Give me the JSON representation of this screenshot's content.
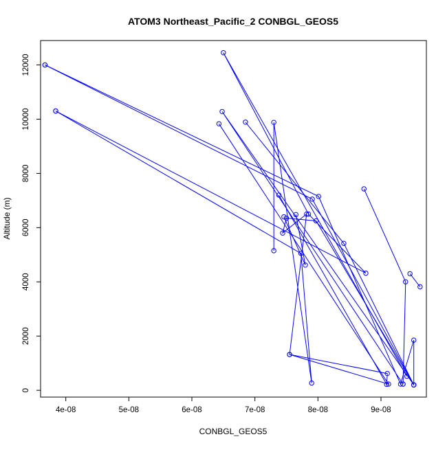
{
  "chart_data": {
    "type": "line",
    "title": "ATOM3 Northeast_Pacific_2 CONBGL_GEOS5",
    "xlabel": "CONBGL_GEOS5",
    "ylabel": "Altitude (m)",
    "xlim": [
      3.6e-08,
      9.72e-08
    ],
    "ylim": [
      -250,
      12900
    ],
    "x_ticks": [
      4e-08,
      5e-08,
      6e-08,
      7e-08,
      8e-08,
      9e-08
    ],
    "x_tick_labels": [
      "4e-08",
      "5e-08",
      "6e-08",
      "7e-08",
      "8e-08",
      "9e-08"
    ],
    "y_ticks": [
      0,
      2000,
      4000,
      6000,
      8000,
      10000,
      12000
    ],
    "y_tick_labels": [
      "0",
      "2000",
      "4000",
      "6000",
      "8000",
      "10000",
      "12000"
    ],
    "grid": false,
    "legend": "none",
    "series_color": "#0000ff",
    "markers": "open-circle",
    "series": [
      {
        "points": [
          {
            "x": 3.67e-08,
            "y": 12000
          },
          {
            "x": 8.01e-08,
            "y": 7150
          },
          {
            "x": 9.31e-08,
            "y": 230
          },
          {
            "x": 9.52e-08,
            "y": 1850
          },
          {
            "x": 9.52e-08,
            "y": 200
          },
          {
            "x": 6.48e-08,
            "y": 10280
          },
          {
            "x": 9.35e-08,
            "y": 230
          }
        ]
      },
      {
        "points": [
          {
            "x": 3.67e-08,
            "y": 12000
          },
          {
            "x": 7.91e-08,
            "y": 7050
          },
          {
            "x": 9.52e-08,
            "y": 200
          }
        ]
      },
      {
        "points": [
          {
            "x": 3.84e-08,
            "y": 10300
          },
          {
            "x": 8.76e-08,
            "y": 4320
          },
          {
            "x": 7.85e-08,
            "y": 6500
          },
          {
            "x": 6.5e-08,
            "y": 12450
          },
          {
            "x": 9.41e-08,
            "y": 520
          }
        ]
      },
      {
        "points": [
          {
            "x": 3.84e-08,
            "y": 10300
          },
          {
            "x": 7.73e-08,
            "y": 5050
          },
          {
            "x": 7.9e-08,
            "y": 270
          },
          {
            "x": 7.3e-08,
            "y": 9880
          },
          {
            "x": 7.3e-08,
            "y": 5150
          }
        ]
      },
      {
        "points": [
          {
            "x": 6.43e-08,
            "y": 9830
          },
          {
            "x": 9.12e-08,
            "y": 230
          },
          {
            "x": 7.55e-08,
            "y": 1320
          },
          {
            "x": 7.82e-08,
            "y": 6500
          },
          {
            "x": 7.44e-08,
            "y": 5800
          },
          {
            "x": 7.5e-08,
            "y": 6350
          },
          {
            "x": 7.97e-08,
            "y": 6250
          },
          {
            "x": 9.52e-08,
            "y": 200
          }
        ]
      },
      {
        "points": [
          {
            "x": 6.85e-08,
            "y": 9890
          },
          {
            "x": 8.41e-08,
            "y": 5420
          },
          {
            "x": 9.52e-08,
            "y": 200
          }
        ]
      },
      {
        "points": [
          {
            "x": 7.38e-08,
            "y": 7200
          },
          {
            "x": 9.09e-08,
            "y": 220
          },
          {
            "x": 9.1e-08,
            "y": 620
          },
          {
            "x": 7.55e-08,
            "y": 1320
          }
        ]
      },
      {
        "points": [
          {
            "x": 7.65e-08,
            "y": 6480
          },
          {
            "x": 7.8e-08,
            "y": 4620
          },
          {
            "x": 7.46e-08,
            "y": 6400
          }
        ]
      },
      {
        "points": [
          {
            "x": 8.73e-08,
            "y": 7430
          },
          {
            "x": 9.39e-08,
            "y": 4000
          },
          {
            "x": 9.35e-08,
            "y": 230
          }
        ]
      },
      {
        "points": [
          {
            "x": 9.46e-08,
            "y": 4300
          },
          {
            "x": 9.62e-08,
            "y": 3820
          }
        ]
      }
    ]
  }
}
